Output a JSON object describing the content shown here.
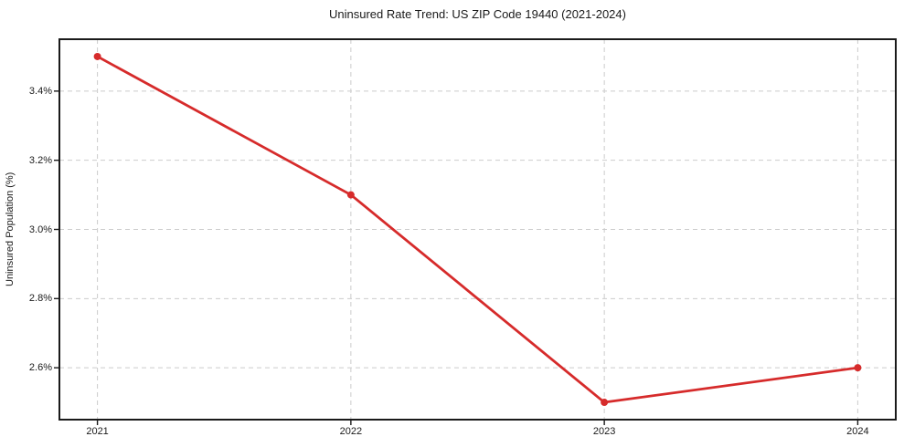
{
  "chart_data": {
    "type": "line",
    "title": "Uninsured Rate Trend: US ZIP Code 19440 (2021-2024)",
    "xlabel": "",
    "ylabel": "Uninsured Population (%)",
    "x": [
      2021,
      2022,
      2023,
      2024
    ],
    "series": [
      {
        "name": "Uninsured rate",
        "values": [
          3.5,
          3.1,
          2.5,
          2.6
        ]
      }
    ],
    "xticks": {
      "values": [
        2021,
        2022,
        2023,
        2024
      ],
      "labels": [
        "2021",
        "2022",
        "2023",
        "2024"
      ]
    },
    "yticks": {
      "values": [
        3.4,
        3.2,
        3.0,
        2.8,
        2.6
      ],
      "labels": [
        "3.4%",
        "3.2%",
        "3.0%",
        "2.8%",
        "2.6%"
      ]
    },
    "xlim": [
      2020.85,
      2024.15
    ],
    "ylim": [
      2.45,
      3.55
    ],
    "grid": true,
    "legend": "none",
    "marker": "circle",
    "colors": {
      "line": "#d62b2b",
      "marker": "#d62b2b",
      "grid": "#cccccc",
      "spine": "#1a1a1a",
      "text": "#1a1a1a",
      "background": "#ffffff"
    }
  }
}
